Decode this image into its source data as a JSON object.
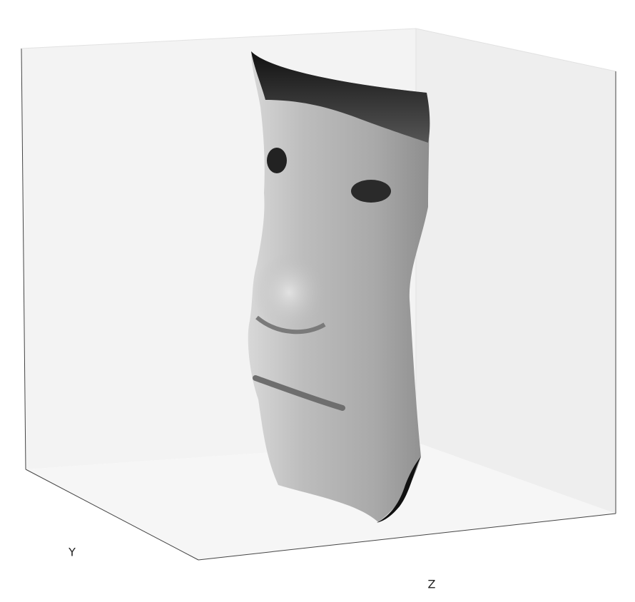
{
  "chart_data": {
    "type": "surface3d",
    "ylabel": "Y",
    "zlabel": "Z"
  }
}
